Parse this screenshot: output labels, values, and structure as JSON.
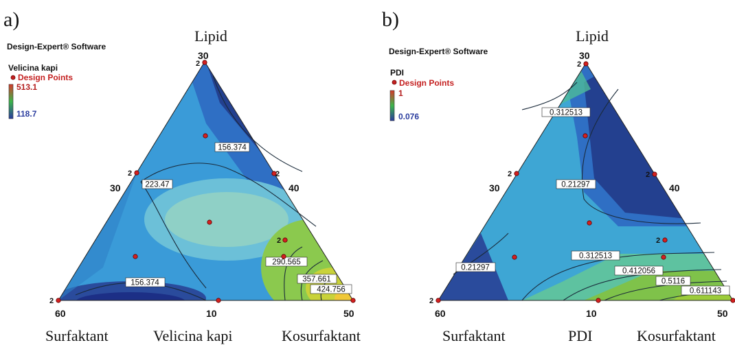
{
  "chart_data": [
    {
      "type": "ternary-contour",
      "panel_label": "a)",
      "software": "Design-Expert® Software",
      "response": "Velicina kapi",
      "legend_design_points": "Design Points",
      "legend_max": "513.1",
      "legend_min": "118.7",
      "vertex_labels": {
        "top": "Lipid",
        "left": "Surfaktant",
        "right": "Kosurfaktant"
      },
      "bottom_title": "Velicina kapi",
      "ticks": {
        "top": "30",
        "left_mid": "30",
        "right_mid": "40",
        "bottom_left": "60",
        "bottom_mid": "10",
        "bottom_right": "50"
      },
      "replicate_marker": "2",
      "contours": [
        "156.374",
        "223.47",
        "290.565",
        "357.661",
        "424.756",
        "156.374"
      ],
      "colors": {
        "low": "#1a2f8a",
        "mid": "#3ea3d6",
        "high": "#e8c23a"
      }
    },
    {
      "type": "ternary-contour",
      "panel_label": "b)",
      "software": "Design-Expert® Software",
      "response": "PDI",
      "legend_design_points": "Design Points",
      "legend_max": "1",
      "legend_min": "0.076",
      "vertex_labels": {
        "top": "Lipid",
        "left": "Surfaktant",
        "right": "Kosurfaktant"
      },
      "bottom_title": "PDI",
      "ticks": {
        "top": "30",
        "left_mid": "30",
        "right_mid": "40",
        "bottom_left": "60",
        "bottom_mid": "10",
        "bottom_right": "50"
      },
      "replicate_marker": "2",
      "contours": [
        "0.312513",
        "0.21297",
        "0.312513",
        "0.412056",
        "0.5116",
        "0.611143",
        "0.21297"
      ],
      "colors": {
        "low": "#1a2f8a",
        "mid": "#3ea3d6",
        "high": "#7fc24a"
      }
    }
  ]
}
